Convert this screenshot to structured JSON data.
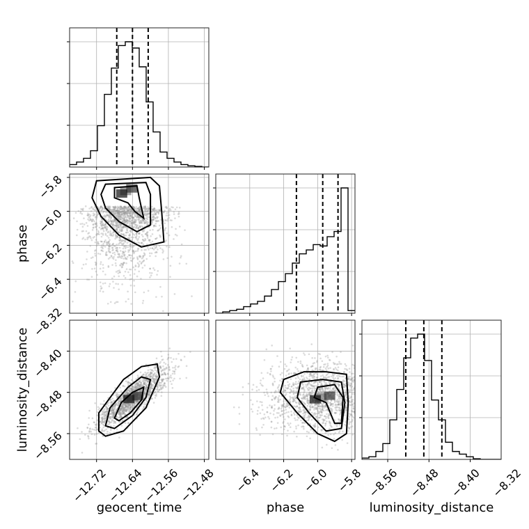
{
  "chart_data": {
    "type": "corner",
    "parameters": [
      "geocent_time",
      "phase",
      "luminosity_distance"
    ],
    "axis_ranges": {
      "geocent_time": [
        -12.78,
        -12.47
      ],
      "phase": [
        -6.6,
        -5.78
      ],
      "luminosity_distance": [
        -8.61,
        -8.34
      ]
    },
    "ticks": {
      "geocent_time": [
        "−12.72",
        "−12.64",
        "−12.56",
        "−12.48"
      ],
      "phase": [
        "−6.4",
        "−6.2",
        "−6.0",
        "−5.8"
      ],
      "luminosity_distance": [
        "−8.56",
        "−8.48",
        "−8.40",
        "−8.32"
      ]
    },
    "tick_values": {
      "geocent_time": [
        -12.72,
        -12.64,
        -12.56,
        -12.48
      ],
      "phase": [
        -6.4,
        -6.2,
        -6.0,
        -5.8
      ],
      "luminosity_distance": [
        -8.56,
        -8.48,
        -8.4,
        -8.32
      ]
    },
    "histograms": {
      "geocent_time": {
        "bin_edges_start": -12.78,
        "bin_width": 0.0155,
        "counts": [
          0.02,
          0.04,
          0.07,
          0.13,
          0.33,
          0.58,
          0.79,
          0.97,
          1.0,
          0.95,
          0.8,
          0.52,
          0.28,
          0.12,
          0.07,
          0.04,
          0.02,
          0.01,
          0.005,
          0.0
        ]
      },
      "phase": {
        "bin_edges_start": -6.6,
        "bin_width": 0.041,
        "counts": [
          0.0,
          0.01,
          0.02,
          0.03,
          0.05,
          0.07,
          0.09,
          0.13,
          0.18,
          0.24,
          0.3,
          0.38,
          0.45,
          0.48,
          0.52,
          0.51,
          0.58,
          0.62,
          0.95,
          0.02
        ]
      },
      "luminosity_distance": {
        "bin_edges_start": -8.61,
        "bin_width": 0.0135,
        "counts": [
          0.01,
          0.02,
          0.06,
          0.12,
          0.3,
          0.53,
          0.77,
          0.92,
          0.95,
          0.75,
          0.45,
          0.3,
          0.13,
          0.06,
          0.04,
          0.02,
          0.005,
          0.0,
          0.0,
          0.0
        ]
      }
    },
    "quantiles": {
      "geocent_time": [
        -12.675,
        -12.64,
        -12.605
      ],
      "phase": [
        -6.125,
        -5.97,
        -5.88
      ],
      "luminosity_distance": [
        -8.525,
        -8.49,
        -8.455
      ]
    },
    "scatter": {
      "geocent_time|phase": {
        "center": [
          -12.655,
          -5.97
        ],
        "spread": [
          0.045,
          0.15
        ],
        "corr": 0.25,
        "skew_y": true
      },
      "geocent_time|luminosity_distance": {
        "center": [
          -12.64,
          -8.49
        ],
        "spread": [
          0.04,
          0.03
        ],
        "corr": 0.85,
        "skew_y": false
      },
      "phase|luminosity_distance": {
        "center": [
          -5.98,
          -8.49
        ],
        "spread": [
          0.17,
          0.035
        ],
        "corr": 0.0,
        "skew_y": false
      }
    },
    "contours": {
      "geocent_time|phase": [
        [
          [
            -12.72,
            -5.82
          ],
          [
            -12.6,
            -5.8
          ],
          [
            -12.58,
            -5.85
          ],
          [
            -12.575,
            -6.0
          ],
          [
            -12.57,
            -6.18
          ],
          [
            -12.62,
            -6.21
          ],
          [
            -12.67,
            -6.14
          ],
          [
            -12.71,
            -6.03
          ],
          [
            -12.73,
            -5.92
          ]
        ],
        [
          [
            -12.7,
            -5.84
          ],
          [
            -12.61,
            -5.83
          ],
          [
            -12.6,
            -5.9
          ],
          [
            -12.6,
            -6.08
          ],
          [
            -12.63,
            -6.12
          ],
          [
            -12.67,
            -6.06
          ],
          [
            -12.7,
            -5.98
          ],
          [
            -12.71,
            -5.9
          ]
        ],
        [
          [
            -12.68,
            -5.86
          ],
          [
            -12.63,
            -5.85
          ],
          [
            -12.625,
            -5.92
          ],
          [
            -12.615,
            -6.04
          ],
          [
            -12.635,
            -6.0
          ],
          [
            -12.65,
            -5.95
          ],
          [
            -12.68,
            -5.92
          ]
        ]
      ],
      "geocent_time|luminosity_distance": [
        [
          [
            -12.715,
            -8.555
          ],
          [
            -12.715,
            -8.52
          ],
          [
            -12.66,
            -8.455
          ],
          [
            -12.62,
            -8.43
          ],
          [
            -12.585,
            -8.425
          ],
          [
            -12.58,
            -8.45
          ],
          [
            -12.61,
            -8.51
          ],
          [
            -12.66,
            -8.555
          ],
          [
            -12.7,
            -8.565
          ]
        ],
        [
          [
            -12.7,
            -8.545
          ],
          [
            -12.69,
            -8.51
          ],
          [
            -12.65,
            -8.47
          ],
          [
            -12.62,
            -8.45
          ],
          [
            -12.6,
            -8.455
          ],
          [
            -12.61,
            -8.49
          ],
          [
            -12.64,
            -8.525
          ],
          [
            -12.68,
            -8.55
          ]
        ],
        [
          [
            -12.68,
            -8.53
          ],
          [
            -12.665,
            -8.5
          ],
          [
            -12.64,
            -8.48
          ],
          [
            -12.615,
            -8.47
          ],
          [
            -12.62,
            -8.495
          ],
          [
            -12.645,
            -8.52
          ],
          [
            -12.67,
            -8.535
          ]
        ]
      ],
      "phase|luminosity_distance": [
        [
          [
            -6.2,
            -8.455
          ],
          [
            -6.08,
            -8.44
          ],
          [
            -5.95,
            -8.44
          ],
          [
            -5.83,
            -8.445
          ],
          [
            -5.82,
            -8.5
          ],
          [
            -5.83,
            -8.56
          ],
          [
            -5.9,
            -8.575
          ],
          [
            -6.0,
            -8.56
          ],
          [
            -6.12,
            -8.52
          ],
          [
            -6.22,
            -8.48
          ]
        ],
        [
          [
            -6.1,
            -8.46
          ],
          [
            -5.97,
            -8.455
          ],
          [
            -5.86,
            -8.46
          ],
          [
            -5.84,
            -8.5
          ],
          [
            -5.86,
            -8.55
          ],
          [
            -5.95,
            -8.555
          ],
          [
            -6.05,
            -8.52
          ],
          [
            -6.12,
            -8.49
          ]
        ],
        [
          [
            -6.0,
            -8.47
          ],
          [
            -5.9,
            -8.465
          ],
          [
            -5.85,
            -8.49
          ],
          [
            -5.86,
            -8.54
          ],
          [
            -5.9,
            -8.54
          ],
          [
            -5.95,
            -8.5
          ],
          [
            -6.02,
            -8.49
          ]
        ]
      ]
    }
  }
}
